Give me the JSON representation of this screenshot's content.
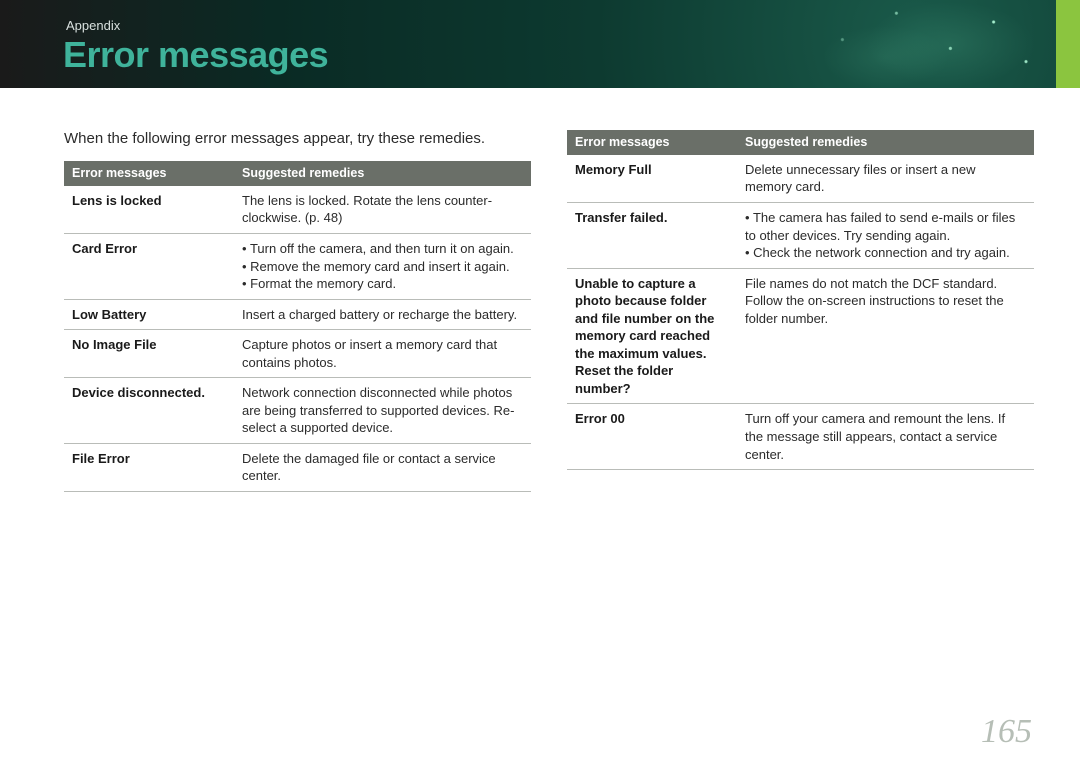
{
  "section_label": "Appendix",
  "page_title": "Error messages",
  "intro": "When the following error messages appear, try these remedies.",
  "page_number": "165",
  "colors": {
    "accent_title": "#3fb39b",
    "side_tab": "#8bc53f",
    "thead_bg": "#6a6f68",
    "thead_fg": "#ffffff",
    "row_border": "#b9bcb8",
    "body_text": "#2b2b2b",
    "page_num": "#b6beb6"
  },
  "table_headers": {
    "col1": "Error messages",
    "col2": "Suggested remedies"
  },
  "left_table": [
    {
      "error": "Lens is locked",
      "remedy_text": "The lens is locked. Rotate the lens counter-clockwise. (p. 48)"
    },
    {
      "error": "Card Error",
      "remedy_list": [
        "Turn off the camera, and then turn it on again.",
        "Remove the memory card and insert it again.",
        "Format the memory card."
      ]
    },
    {
      "error": "Low Battery",
      "remedy_text": "Insert a charged battery or recharge the battery."
    },
    {
      "error": "No Image File",
      "remedy_text": "Capture photos or insert a memory card that contains photos."
    },
    {
      "error": "Device disconnected.",
      "remedy_text": "Network connection disconnected while photos are being transferred to supported devices. Re-select a supported device."
    },
    {
      "error": "File Error",
      "remedy_text": "Delete the damaged file or contact a service center."
    }
  ],
  "right_table": [
    {
      "error": "Memory Full",
      "remedy_text": "Delete unnecessary files or insert a new memory card."
    },
    {
      "error": "Transfer failed.",
      "remedy_list": [
        "The camera has failed to send e-mails or files to other devices. Try sending again.",
        "Check the network connection and try again."
      ]
    },
    {
      "error": "Unable to capture a photo because folder and file number on the memory card reached the maximum values. Reset the folder number?",
      "remedy_text": "File names do not match the DCF standard. Follow the on-screen instructions to reset the folder number."
    },
    {
      "error": "Error 00",
      "remedy_text": "Turn off your camera and remount the lens. If the message still appears, contact a service center."
    }
  ]
}
